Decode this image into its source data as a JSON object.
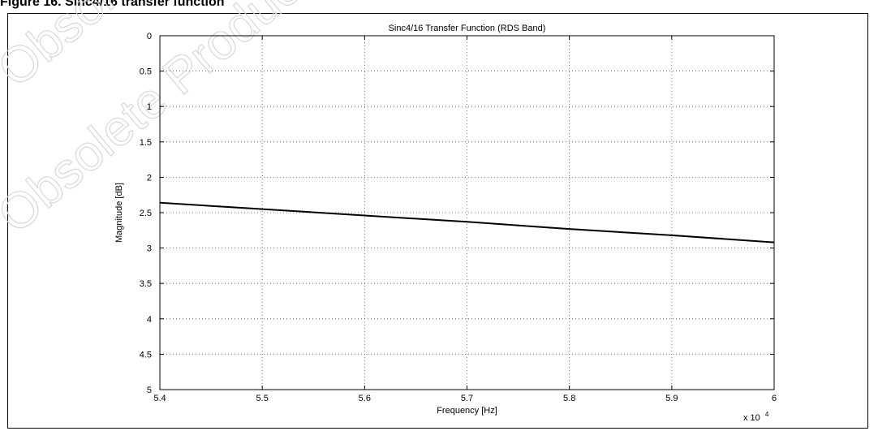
{
  "figure": {
    "caption": "Figure 16. Sinc4/16 transfer function",
    "watermark_text": "Obsolete Product(s)"
  },
  "chart_data": {
    "type": "line",
    "title": "Sinc4/16 Transfer Function (RDS Band)",
    "xlabel": "Frequency [Hz]",
    "ylabel": "Magnitude [dB]",
    "x_exponent_label": "x 10",
    "x_exponent_power": "4",
    "xlim": [
      5.4,
      6.0
    ],
    "ylim": [
      0,
      5
    ],
    "y_reversed": true,
    "grid": true,
    "x_ticks": [
      "5.4",
      "5.5",
      "5.6",
      "5.7",
      "5.8",
      "5.9",
      "6"
    ],
    "y_ticks": [
      "0",
      "0.5",
      "1",
      "1.5",
      "2",
      "2.5",
      "3",
      "3.5",
      "4",
      "4.5",
      "5"
    ],
    "series": [
      {
        "x": [
          5.4,
          5.5,
          5.6,
          5.7,
          5.8,
          5.9,
          6.0
        ],
        "y": [
          2.36,
          2.45,
          2.54,
          2.63,
          2.73,
          2.82,
          2.92
        ]
      }
    ],
    "line_color": "#000000"
  }
}
